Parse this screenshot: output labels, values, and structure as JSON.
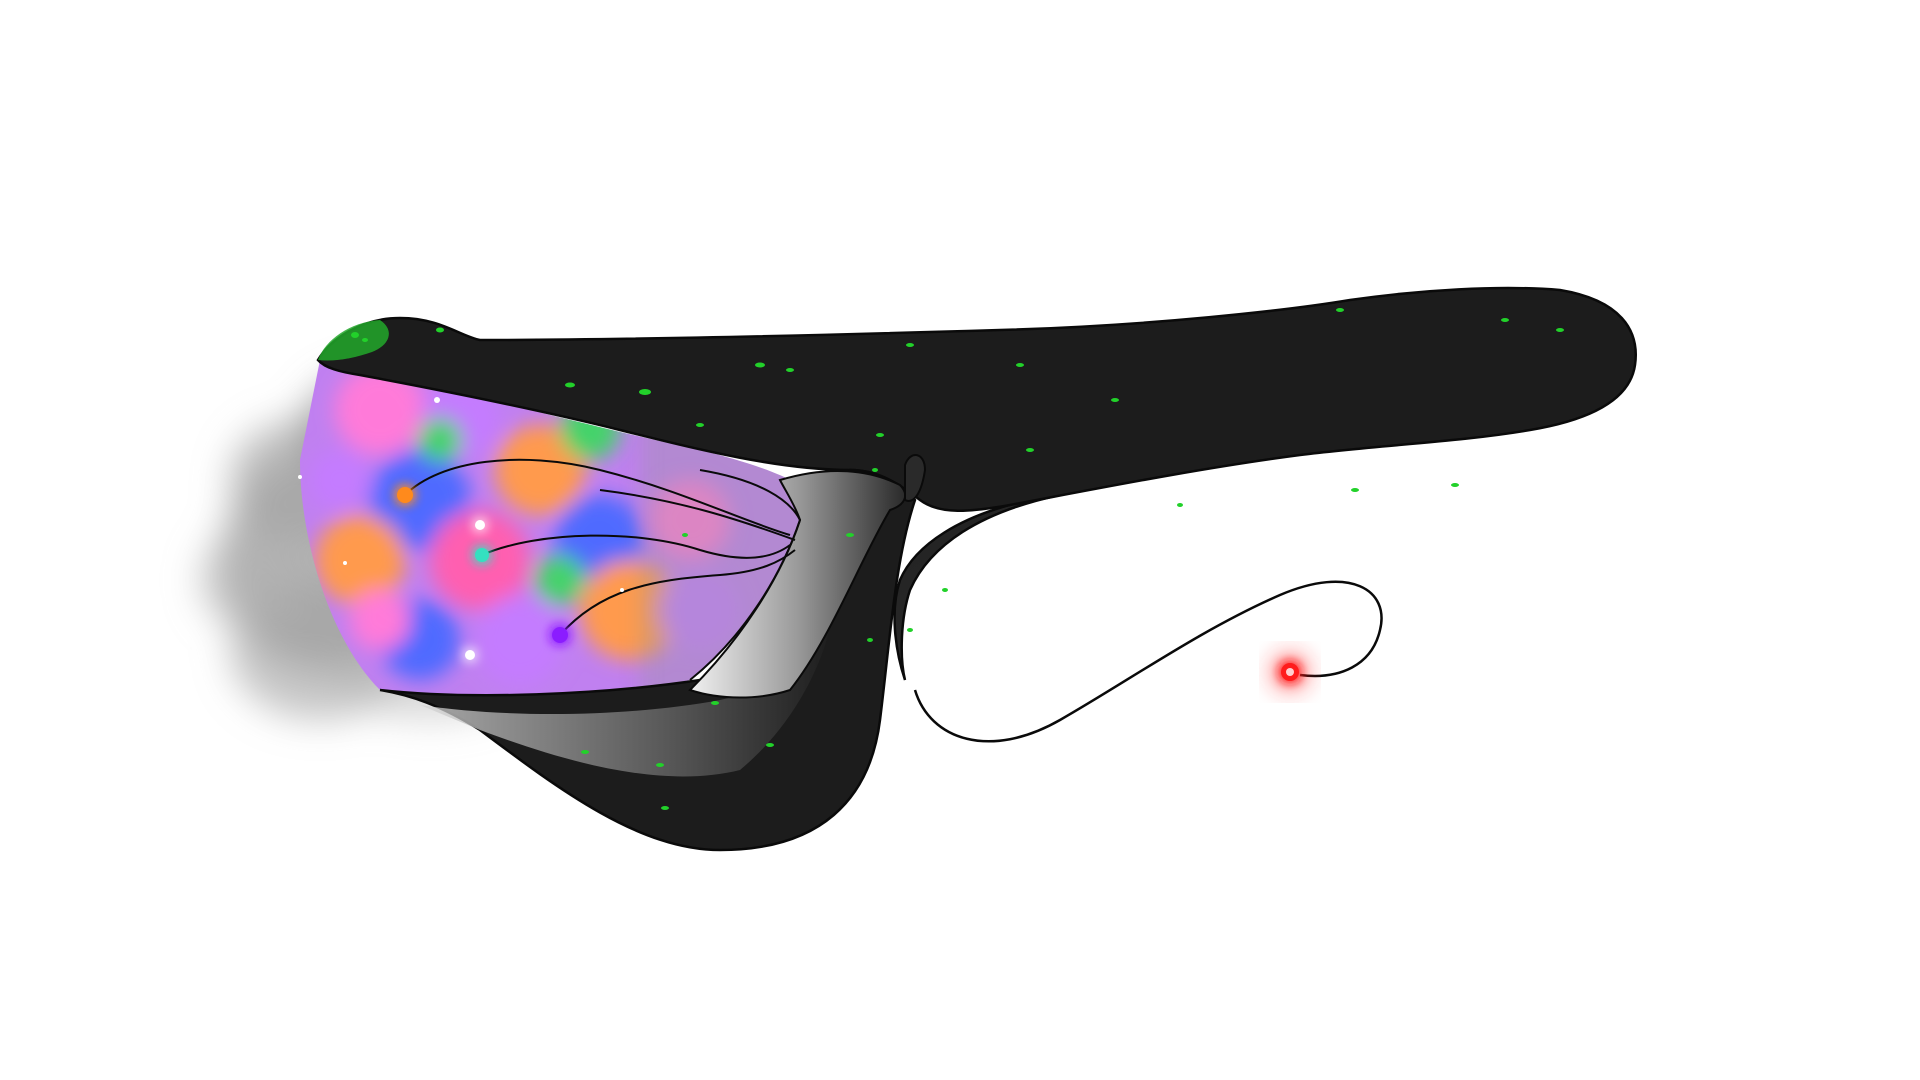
{
  "palette": {
    "background": "#ffffff",
    "body": "#1c1c1c",
    "outline": "#0a0a0a",
    "spot_green": "#22d12a",
    "smoke": "#8a8a8a",
    "lure": "#ff1a1a",
    "nebula": [
      "#ff7ad9",
      "#c47bff",
      "#4f6bff",
      "#ff9a4d",
      "#45d36b",
      "#ff5fb0"
    ],
    "tentacle_lights": [
      "#ff8a1f",
      "#34e0c0",
      "#8b1fff"
    ],
    "sparkles": "#ffffff"
  },
  "subject": {
    "icon": "cosmic-anglerfish-creature",
    "parts": [
      "body",
      "mouth-nebula",
      "smoke-cloud",
      "inner-tentacles",
      "tail-loop",
      "lure-antenna",
      "lure-light"
    ]
  }
}
